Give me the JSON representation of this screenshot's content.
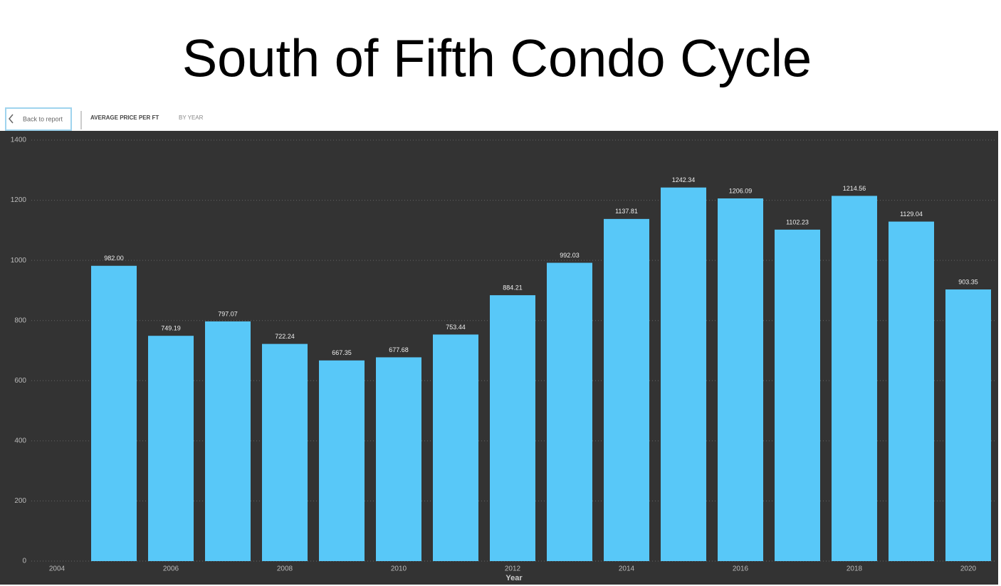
{
  "toolbar": {
    "back": "Back to report",
    "heading": "AVERAGE PRICE PER FT",
    "subheading": "BY YEAR"
  },
  "chart_data": {
    "type": "bar",
    "title": "South of Fifth Condo Cycle",
    "xlabel": "Year",
    "x": [
      2005,
      2006,
      2007,
      2008,
      2009,
      2010,
      2011,
      2012,
      2013,
      2014,
      2015,
      2016,
      2017,
      2018,
      2019,
      2020
    ],
    "values": [
      982,
      749.19,
      797.07,
      722.24,
      667.35,
      677.68,
      753.44,
      884.21,
      992.03,
      1137.81,
      1242.34,
      1206.09,
      1102.23,
      1214.56,
      1129.04,
      903.35
    ],
    "value_labels": [
      "982.00",
      "749.19",
      "797.07",
      "722.24",
      "667.35",
      "677.68",
      "753.44",
      "884.21",
      "992.03",
      "1137.81",
      "1242.34",
      "1206.09",
      "1102.23",
      "1214.56",
      "1129.04",
      "903.35"
    ],
    "color": "#58c8f8",
    "xlim": [
      2003.125,
      2020.5
    ],
    "xticks": [
      2004,
      2006,
      2008,
      2010,
      2012,
      2014,
      2016,
      2018,
      2020
    ],
    "ylim": [
      0,
      1400
    ],
    "yticks": [
      0,
      200,
      400,
      600,
      800,
      1000,
      1200,
      1400
    ],
    "grid": true
  }
}
